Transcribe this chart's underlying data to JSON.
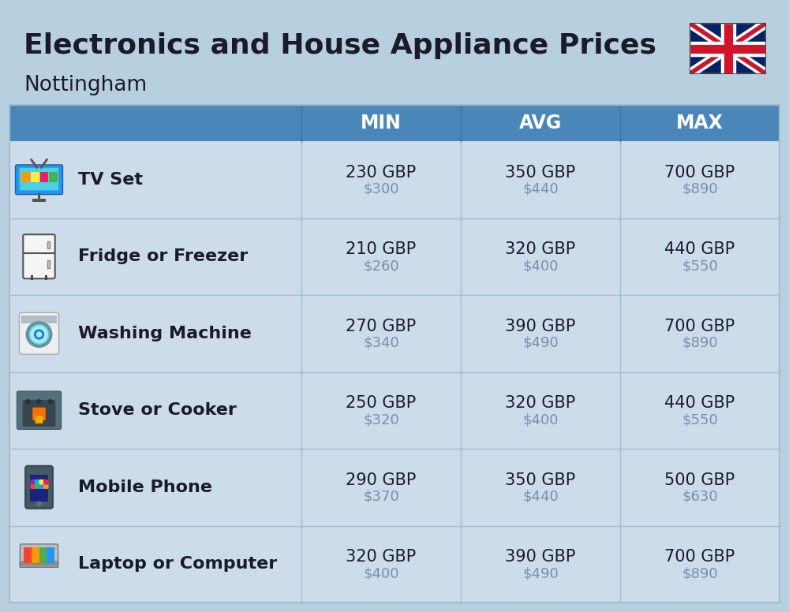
{
  "title": "Electronics and House Appliance Prices",
  "subtitle": "Nottingham",
  "bg_color": "#b8cfe0",
  "header_color": "#4a86b8",
  "row_color": "#cddcea",
  "separator_color": "#a0bdd0",
  "header_text_color": "#ffffff",
  "row_text_color": "#1a1a2e",
  "usd_text_color": "#7a8fa8",
  "col_headers": [
    "MIN",
    "AVG",
    "MAX"
  ],
  "items": [
    {
      "name": "TV Set",
      "min_gbp": "230 GBP",
      "min_usd": "$300",
      "avg_gbp": "350 GBP",
      "avg_usd": "$440",
      "max_gbp": "700 GBP",
      "max_usd": "$890"
    },
    {
      "name": "Fridge or Freezer",
      "min_gbp": "210 GBP",
      "min_usd": "$260",
      "avg_gbp": "320 GBP",
      "avg_usd": "$400",
      "max_gbp": "440 GBP",
      "max_usd": "$550"
    },
    {
      "name": "Washing Machine",
      "min_gbp": "270 GBP",
      "min_usd": "$340",
      "avg_gbp": "390 GBP",
      "avg_usd": "$490",
      "max_gbp": "700 GBP",
      "max_usd": "$890"
    },
    {
      "name": "Stove or Cooker",
      "min_gbp": "250 GBP",
      "min_usd": "$320",
      "avg_gbp": "320 GBP",
      "avg_usd": "$400",
      "max_gbp": "440 GBP",
      "max_usd": "$550"
    },
    {
      "name": "Mobile Phone",
      "min_gbp": "290 GBP",
      "min_usd": "$370",
      "avg_gbp": "350 GBP",
      "avg_usd": "$440",
      "max_gbp": "500 GBP",
      "max_usd": "$630"
    },
    {
      "name": "Laptop or Computer",
      "min_gbp": "320 GBP",
      "min_usd": "$400",
      "avg_gbp": "390 GBP",
      "avg_usd": "$490",
      "max_gbp": "700 GBP",
      "max_usd": "$890"
    }
  ],
  "title_fontsize": 26,
  "subtitle_fontsize": 19,
  "header_fontsize": 17,
  "item_name_fontsize": 16,
  "value_fontsize": 15,
  "usd_fontsize": 13
}
